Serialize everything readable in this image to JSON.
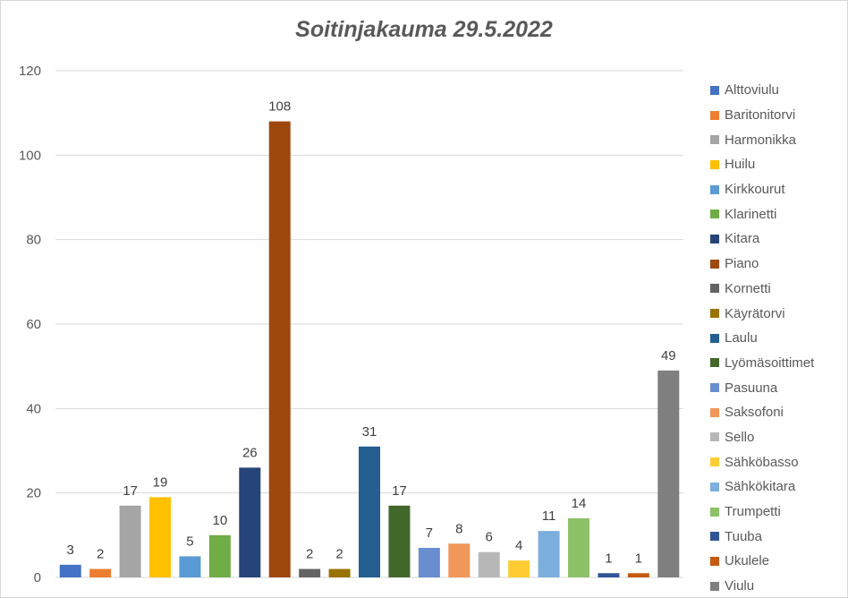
{
  "chart_data": {
    "type": "bar",
    "title": "Soitinjakauma 29.5.2022",
    "xlabel": "",
    "ylabel": "",
    "ylim": [
      0,
      120
    ],
    "yticks": [
      0,
      20,
      40,
      60,
      80,
      100,
      120
    ],
    "grid": true,
    "legend_position": "right",
    "series": [
      {
        "name": "Alttoviulu",
        "value": 3,
        "color": "#4472c4"
      },
      {
        "name": "Baritonitorvi",
        "value": 2,
        "color": "#ed7d31"
      },
      {
        "name": "Harmonikka",
        "value": 17,
        "color": "#a5a5a5"
      },
      {
        "name": "Huilu",
        "value": 19,
        "color": "#ffc000"
      },
      {
        "name": "Kirkkourut",
        "value": 5,
        "color": "#5b9bd5"
      },
      {
        "name": "Klarinetti",
        "value": 10,
        "color": "#70ad47"
      },
      {
        "name": "Kitara",
        "value": 26,
        "color": "#264478"
      },
      {
        "name": "Piano",
        "value": 108,
        "color": "#9e480e"
      },
      {
        "name": "Kornetti",
        "value": 2,
        "color": "#636363"
      },
      {
        "name": "Käyrätorvi",
        "value": 2,
        "color": "#997300"
      },
      {
        "name": "Laulu",
        "value": 31,
        "color": "#255e91"
      },
      {
        "name": "Lyömäsoittimet",
        "value": 17,
        "color": "#43682b"
      },
      {
        "name": "Pasuuna",
        "value": 7,
        "color": "#698ed0"
      },
      {
        "name": "Saksofoni",
        "value": 8,
        "color": "#f1975a"
      },
      {
        "name": "Sello",
        "value": 6,
        "color": "#b7b7b7"
      },
      {
        "name": "Sähköbasso",
        "value": 4,
        "color": "#ffcd33"
      },
      {
        "name": "Sähkökitara",
        "value": 11,
        "color": "#7cafdd"
      },
      {
        "name": "Trumpetti",
        "value": 14,
        "color": "#8cc168"
      },
      {
        "name": "Tuuba",
        "value": 1,
        "color": "#2f5597"
      },
      {
        "name": "Ukulele",
        "value": 1,
        "color": "#c55a11"
      },
      {
        "name": "Viulu",
        "value": 49,
        "color": "#7f7f7f"
      }
    ]
  }
}
